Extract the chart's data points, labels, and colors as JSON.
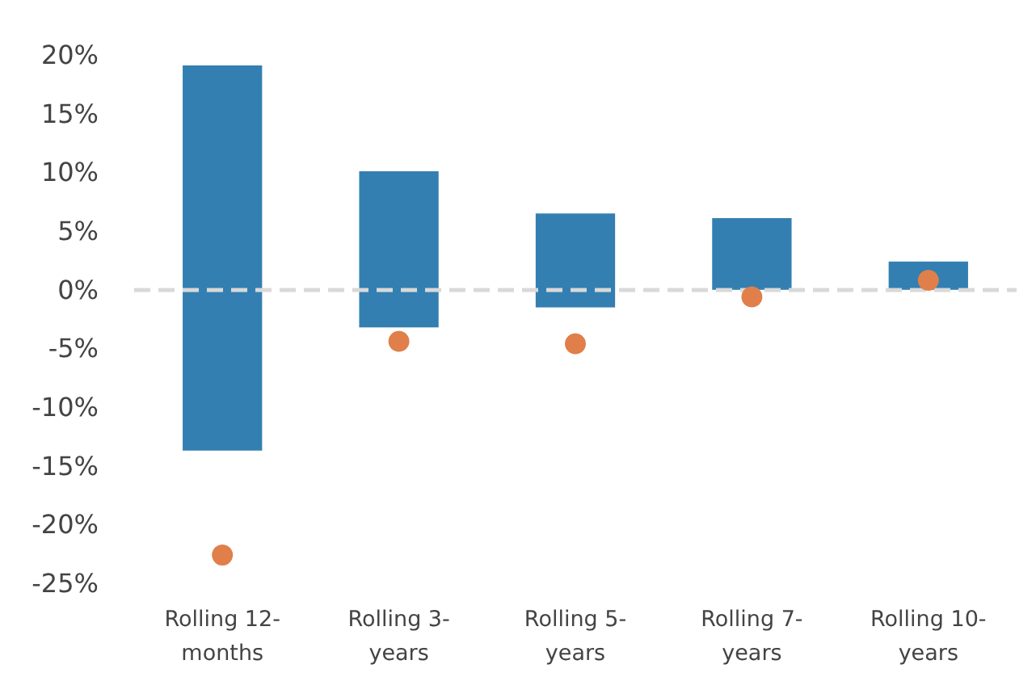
{
  "chart_data": {
    "type": "bar",
    "categories": [
      "Rolling 12-months",
      "Rolling 3-years",
      "Rolling 5-years",
      "Rolling 7-years",
      "Rolling 10-years"
    ],
    "series": [
      {
        "color": "#337fb1",
        "base": [
          -13.7,
          -3.2,
          -1.5,
          0,
          0
        ],
        "values": [
          32.8,
          13.3,
          8.0,
          6.1,
          2.4
        ]
      },
      {
        "type": "scatter",
        "color": "#e07f4a",
        "x": [
          "Rolling 12-months",
          "Rolling 3-years",
          "Rolling 5-years",
          "Rolling 7-years",
          "Rolling 10-years"
        ],
        "values": [
          -22.6,
          -4.4,
          -4.6,
          -0.6,
          0.8
        ]
      }
    ],
    "ylim": [
      -25,
      20
    ],
    "yticks": [
      {
        "value": -25,
        "label": "-25%"
      },
      {
        "value": -20,
        "label": "-20%"
      },
      {
        "value": -15,
        "label": "-15%"
      },
      {
        "value": -10,
        "label": "-10%"
      },
      {
        "value": -5,
        "label": "-5%"
      },
      {
        "value": 0,
        "label": "0%"
      },
      {
        "value": 5,
        "label": "5%"
      },
      {
        "value": 10,
        "label": "10%"
      },
      {
        "value": 15,
        "label": "15%"
      },
      {
        "value": 20,
        "label": "20%"
      }
    ],
    "ref_lines": [
      {
        "axis": "y",
        "value": 0,
        "color": "#d9d9d9",
        "line_style": "dashed"
      }
    ],
    "grid": false,
    "marker": "circle"
  }
}
